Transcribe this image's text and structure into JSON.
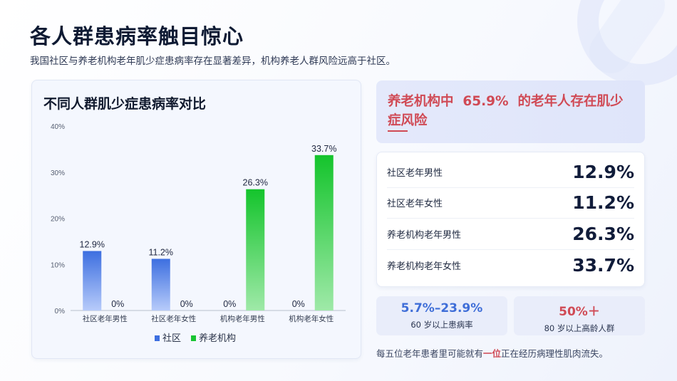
{
  "page": {
    "title": "各人群患病率触目惊心",
    "subtitle": "我国社区与养老机构老年肌少症患病率存在显著差异，机构养老人群风险远高于社区。"
  },
  "chart_data": {
    "type": "bar",
    "title": "不同人群肌少症患病率对比",
    "categories": [
      "社区老年男性",
      "社区老年女性",
      "机构老年男性",
      "机构老年女性"
    ],
    "series": [
      {
        "name": "社区",
        "values": [
          12.9,
          11.2,
          0,
          0
        ],
        "labels": [
          "12.9%",
          "11.2%",
          "0%",
          "0%"
        ],
        "color": "#3d6fe0"
      },
      {
        "name": "养老机构",
        "values": [
          0,
          0,
          26.3,
          33.7
        ],
        "labels": [
          "0%",
          "0%",
          "26.3%",
          "33.7%"
        ],
        "color": "#18c432"
      }
    ],
    "ylim": [
      0,
      40
    ],
    "yticks": [
      "0%",
      "10%",
      "20%",
      "30%",
      "40%"
    ],
    "grid": false,
    "legend": "bottom"
  },
  "highlight": {
    "prefix": "养老机构中",
    "value": "65.9%",
    "suffix": "的老年人存在肌少症风险"
  },
  "stats": [
    {
      "label": "社区老年男性",
      "value": "12.9%"
    },
    {
      "label": "社区老年女性",
      "value": "11.2%"
    },
    {
      "label": "养老机构老年男性",
      "value": "26.3%"
    },
    {
      "label": "养老机构老年女性",
      "value": "33.7%"
    }
  ],
  "mini_left": {
    "value": "5.7%–23.9%",
    "label": "60 岁以上患病率"
  },
  "mini_right": {
    "value": "50%＋",
    "label": "80 岁以上高龄人群"
  },
  "footnote": {
    "before": "每五位老年患者里可能就有",
    "emphasis": "一位",
    "after": "正在经历病理性肌肉流失。"
  },
  "colors": {
    "accent_red": "#d04a55",
    "community_blue": "#3d6fe0",
    "institution_green": "#18c432"
  }
}
